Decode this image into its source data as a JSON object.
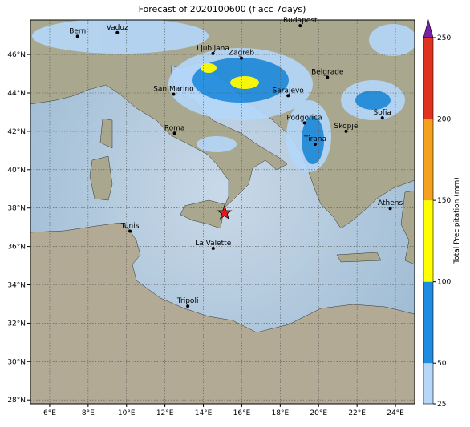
{
  "map": {
    "title": "Forecast of 2020100600 (f acc 7days)",
    "lon_range": [
      5,
      25
    ],
    "lat_range": [
      27.8,
      47.8
    ],
    "lon_ticks": [
      {
        "value": 6,
        "label": "6°E"
      },
      {
        "value": 8,
        "label": "8°E"
      },
      {
        "value": 10,
        "label": "10°E"
      },
      {
        "value": 12,
        "label": "12°E"
      },
      {
        "value": 14,
        "label": "14°E"
      },
      {
        "value": 16,
        "label": "16°E"
      },
      {
        "value": 18,
        "label": "18°E"
      },
      {
        "value": 20,
        "label": "20°E"
      },
      {
        "value": 22,
        "label": "22°E"
      },
      {
        "value": 24,
        "label": "24°E"
      }
    ],
    "lat_ticks": [
      {
        "value": 28,
        "label": "28°N"
      },
      {
        "value": 30,
        "label": "30°N"
      },
      {
        "value": 32,
        "label": "32°N"
      },
      {
        "value": 34,
        "label": "34°N"
      },
      {
        "value": 36,
        "label": "36°N"
      },
      {
        "value": 38,
        "label": "38°N"
      },
      {
        "value": 40,
        "label": "40°N"
      },
      {
        "value": 42,
        "label": "42°N"
      },
      {
        "value": 44,
        "label": "44°N"
      },
      {
        "value": 46,
        "label": "46°N"
      }
    ],
    "grid": true,
    "cities": [
      {
        "name": "Bern",
        "lon": 7.45,
        "lat": 46.95
      },
      {
        "name": "Vaduz",
        "lon": 9.52,
        "lat": 47.14
      },
      {
        "name": "Budapest",
        "lon": 19.04,
        "lat": 47.5
      },
      {
        "name": "Ljubljana",
        "lon": 14.5,
        "lat": 46.05
      },
      {
        "name": "Zagreb",
        "lon": 15.98,
        "lat": 45.81
      },
      {
        "name": "Belgrade",
        "lon": 20.46,
        "lat": 44.82
      },
      {
        "name": "San Marino",
        "lon": 12.45,
        "lat": 43.94
      },
      {
        "name": "Sarajevo",
        "lon": 18.41,
        "lat": 43.86
      },
      {
        "name": "Roma",
        "lon": 12.5,
        "lat": 41.9
      },
      {
        "name": "Podgorica",
        "lon": 19.26,
        "lat": 42.44
      },
      {
        "name": "Skopje",
        "lon": 21.43,
        "lat": 42.0
      },
      {
        "name": "Sofia",
        "lon": 23.32,
        "lat": 42.7
      },
      {
        "name": "Tirana",
        "lon": 19.82,
        "lat": 41.33
      },
      {
        "name": "Athens",
        "lon": 23.73,
        "lat": 37.98
      },
      {
        "name": "Tunis",
        "lon": 10.18,
        "lat": 36.8
      },
      {
        "name": "La Valette",
        "lon": 14.51,
        "lat": 35.9
      },
      {
        "name": "Tripoli",
        "lon": 13.19,
        "lat": 32.89
      }
    ],
    "star": {
      "lon": 15.1,
      "lat": 37.75,
      "color": "#e8141e"
    },
    "colorbar": {
      "label": "Total Precipitation (mm)",
      "levels": [
        25,
        50,
        100,
        150,
        200,
        250
      ],
      "colors": [
        "#b4d7fa",
        "#1e8ce0",
        "#ffff00",
        "#f5a01e",
        "#e0321e"
      ],
      "extend_color": "#7a1fa8"
    }
  }
}
